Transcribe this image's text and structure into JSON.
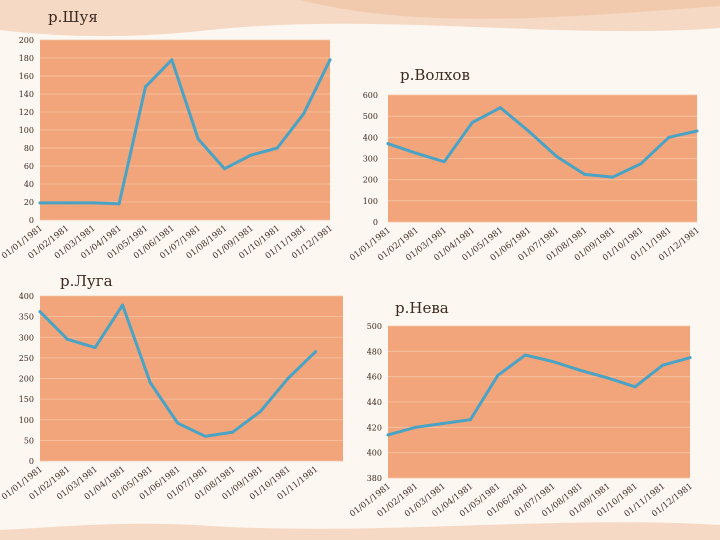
{
  "colors": {
    "plot_bg": "#f2a57a",
    "grid": "#f6c6a6",
    "line": "#4aa3c5",
    "text": "#3a2a20"
  },
  "chart_data": [
    {
      "type": "line",
      "title": "р.Шуя",
      "categories": [
        "01/01/1981",
        "01/02/1981",
        "01/03/1981",
        "01/04/1981",
        "01/05/1981",
        "01/06/1981",
        "01/07/1981",
        "01/08/1981",
        "01/09/1981",
        "01/10/1981",
        "01/11/1981",
        "01/12/1981"
      ],
      "values": [
        19,
        19,
        19,
        18,
        148,
        178,
        90,
        57,
        72,
        80,
        118,
        178
      ],
      "ylim": [
        0,
        200
      ],
      "yticks": [
        0,
        20,
        40,
        60,
        80,
        100,
        120,
        140,
        160,
        180,
        200
      ],
      "grid": true
    },
    {
      "type": "line",
      "title": "р.Волхов",
      "categories": [
        "01/01/1981",
        "01/02/1981",
        "01/03/1981",
        "01/04/1981",
        "01/05/1981",
        "01/06/1981",
        "01/07/1981",
        "01/08/1981",
        "01/09/1981",
        "01/10/1981",
        "01/11/1981",
        "01/12/1981"
      ],
      "values": [
        370,
        325,
        285,
        470,
        540,
        430,
        310,
        225,
        212,
        275,
        400,
        430
      ],
      "ylim": [
        0,
        600
      ],
      "yticks": [
        0,
        100,
        200,
        300,
        400,
        500,
        600
      ],
      "grid": true
    },
    {
      "type": "line",
      "title": "р.Луга",
      "categories": [
        "01/01/1981",
        "01/02/1981",
        "01/03/1981",
        "01/04/1981",
        "01/05/1981",
        "01/06/1981",
        "01/07/1981",
        "01/08/1981",
        "01/09/1981",
        "01/10/1981",
        "01/11/1981"
      ],
      "values": [
        362,
        295,
        275,
        378,
        190,
        92,
        60,
        70,
        120,
        200,
        265
      ],
      "ylim": [
        0,
        400
      ],
      "yticks": [
        0,
        50,
        100,
        150,
        200,
        250,
        300,
        350,
        400
      ],
      "grid": true
    },
    {
      "type": "line",
      "title": "р.Нева",
      "categories": [
        "01/01/1981",
        "01/02/1981",
        "01/03/1981",
        "01/04/1981",
        "01/05/1981",
        "01/06/1981",
        "01/07/1981",
        "01/08/1981",
        "01/09/1981",
        "01/10/1981",
        "01/11/1981",
        "01/12/1981"
      ],
      "values": [
        414,
        420,
        423,
        426,
        461,
        477,
        472,
        465,
        459,
        452,
        469,
        475
      ],
      "ylim": [
        380,
        500
      ],
      "yticks": [
        380,
        400,
        420,
        440,
        460,
        480,
        500
      ],
      "grid": true
    }
  ]
}
